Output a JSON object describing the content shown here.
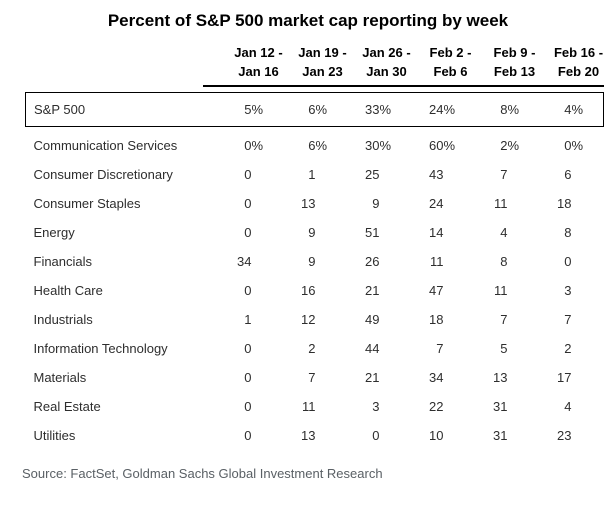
{
  "title": "Percent of S&P 500 market cap reporting by week",
  "source": "Source: FactSet, Goldman Sachs Global Investment Research",
  "colors": {
    "text": "#2e2e2e",
    "heading_text": "#000000",
    "source_text": "#5a6065",
    "border": "#000000",
    "background": "#ffffff"
  },
  "chart_data": {
    "type": "table",
    "title": "Percent of S&P 500 market cap reporting by week",
    "columns": [
      {
        "label": "Jan 12 - Jan 16",
        "line1": "Jan 12 -",
        "line2": "Jan 16"
      },
      {
        "label": "Jan 19 - Jan 23",
        "line1": "Jan 19 -",
        "line2": "Jan 23"
      },
      {
        "label": "Jan 26 - Jan 30",
        "line1": "Jan 26 -",
        "line2": "Jan 30"
      },
      {
        "label": "Feb 2 - Feb 6",
        "line1": "Feb 2 -",
        "line2": "Feb 6"
      },
      {
        "label": "Feb 9 - Feb 13",
        "line1": "Feb 9 -",
        "line2": "Feb 13"
      },
      {
        "label": "Feb 16 - Feb 20",
        "line1": "Feb 16 -",
        "line2": "Feb 20"
      }
    ],
    "summary_row": {
      "label": "S&P 500",
      "suffix": "%",
      "values": [
        5,
        6,
        33,
        24,
        8,
        4
      ]
    },
    "rows": [
      {
        "label": "Communication Services",
        "suffix": "%",
        "values": [
          0,
          6,
          30,
          60,
          2,
          0
        ]
      },
      {
        "label": "Consumer Discretionary",
        "suffix": "",
        "values": [
          0,
          1,
          25,
          43,
          7,
          6
        ]
      },
      {
        "label": "Consumer Staples",
        "suffix": "",
        "values": [
          0,
          13,
          9,
          24,
          11,
          18
        ]
      },
      {
        "label": "Energy",
        "suffix": "",
        "values": [
          0,
          9,
          51,
          14,
          4,
          8
        ]
      },
      {
        "label": "Financials",
        "suffix": "",
        "values": [
          34,
          9,
          26,
          11,
          8,
          0
        ]
      },
      {
        "label": "Health Care",
        "suffix": "",
        "values": [
          0,
          16,
          21,
          47,
          11,
          3
        ]
      },
      {
        "label": "Industrials",
        "suffix": "",
        "values": [
          1,
          12,
          49,
          18,
          7,
          7
        ]
      },
      {
        "label": "Information Technology",
        "suffix": "",
        "values": [
          0,
          2,
          44,
          7,
          5,
          2
        ]
      },
      {
        "label": "Materials",
        "suffix": "",
        "values": [
          0,
          7,
          21,
          34,
          13,
          17
        ]
      },
      {
        "label": "Real Estate",
        "suffix": "",
        "values": [
          0,
          11,
          3,
          22,
          31,
          4
        ]
      },
      {
        "label": "Utilities",
        "suffix": "",
        "values": [
          0,
          13,
          0,
          10,
          31,
          23
        ]
      }
    ]
  }
}
